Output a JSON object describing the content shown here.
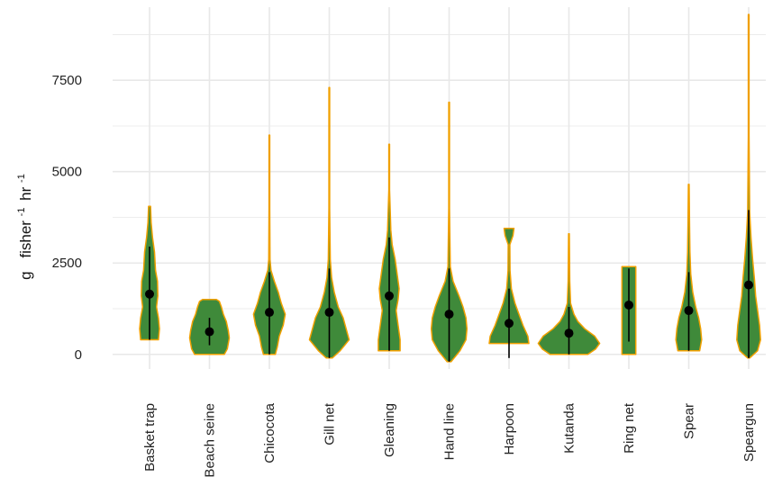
{
  "chart_data": {
    "type": "violin",
    "title": "",
    "xlabel": "",
    "ylabel": {
      "prefix": "g",
      "unit1": "fisher",
      "exp1": "-1",
      "unit2": "hr",
      "exp2": "-1"
    },
    "ylim": [
      -400,
      9500
    ],
    "yticks": [
      0,
      2500,
      5000,
      7500
    ],
    "yticks_labels": [
      "0",
      "2500",
      "5000",
      "7500"
    ],
    "grid": true,
    "legend": "none",
    "colors": {
      "fill": "#3f8a3a",
      "outline": "#f0a000",
      "marker": "#000000",
      "grid": "#e8e8e8"
    },
    "categories": [
      "Basket trap",
      "Beach seine",
      "Chicocota",
      "Gill net",
      "Gleaning",
      "Hand line",
      "Harpoon",
      "Kutanda",
      "Ring net",
      "Spear",
      "Speargun"
    ],
    "series": [
      {
        "category": "Basket trap",
        "mean": 1650,
        "sd_low": 400,
        "sd_high": 2950,
        "min": 400,
        "max": 4050,
        "density": [
          [
            400,
            0.45
          ],
          [
            700,
            0.5
          ],
          [
            1000,
            0.45
          ],
          [
            1300,
            0.35
          ],
          [
            1600,
            0.42
          ],
          [
            2000,
            0.4
          ],
          [
            2300,
            0.3
          ],
          [
            2800,
            0.25
          ],
          [
            3200,
            0.15
          ],
          [
            3600,
            0.08
          ],
          [
            4050,
            0.05
          ]
        ]
      },
      {
        "category": "Beach seine",
        "mean": 620,
        "sd_low": 250,
        "sd_high": 1000,
        "min": 0,
        "max": 1500,
        "density": [
          [
            0,
            0.75
          ],
          [
            150,
            0.9
          ],
          [
            300,
            0.95
          ],
          [
            450,
            1.0
          ],
          [
            650,
            0.95
          ],
          [
            900,
            0.85
          ],
          [
            1100,
            0.7
          ],
          [
            1300,
            0.6
          ],
          [
            1450,
            0.5
          ],
          [
            1500,
            0.35
          ]
        ]
      },
      {
        "category": "Chicocota",
        "mean": 1150,
        "sd_low": 0,
        "sd_high": 2250,
        "min": 0,
        "max": 6000,
        "density": [
          [
            0,
            0.3
          ],
          [
            200,
            0.4
          ],
          [
            500,
            0.5
          ],
          [
            800,
            0.7
          ],
          [
            1100,
            0.8
          ],
          [
            1400,
            0.6
          ],
          [
            1700,
            0.45
          ],
          [
            2000,
            0.25
          ],
          [
            2300,
            0.08
          ],
          [
            2600,
            0.03
          ],
          [
            4000,
            0.02
          ],
          [
            6000,
            0.02
          ]
        ]
      },
      {
        "category": "Gill net",
        "mean": 1150,
        "sd_low": -100,
        "sd_high": 2350,
        "min": -100,
        "max": 7300,
        "density": [
          [
            -100,
            0.15
          ],
          [
            100,
            0.55
          ],
          [
            400,
            1.0
          ],
          [
            700,
            0.85
          ],
          [
            1000,
            0.7
          ],
          [
            1300,
            0.45
          ],
          [
            1700,
            0.25
          ],
          [
            2100,
            0.12
          ],
          [
            2600,
            0.05
          ],
          [
            4000,
            0.02
          ],
          [
            7300,
            0.02
          ]
        ]
      },
      {
        "category": "Gleaning",
        "mean": 1600,
        "sd_low": 100,
        "sd_high": 3200,
        "min": 100,
        "max": 5750,
        "density": [
          [
            100,
            0.55
          ],
          [
            400,
            0.55
          ],
          [
            800,
            0.45
          ],
          [
            1200,
            0.35
          ],
          [
            1500,
            0.45
          ],
          [
            1800,
            0.5
          ],
          [
            2200,
            0.4
          ],
          [
            2600,
            0.3
          ],
          [
            3000,
            0.15
          ],
          [
            3400,
            0.08
          ],
          [
            4500,
            0.02
          ],
          [
            5750,
            0.02
          ]
        ]
      },
      {
        "category": "Hand line",
        "mean": 1100,
        "sd_low": -200,
        "sd_high": 2350,
        "min": -200,
        "max": 6900,
        "density": [
          [
            -200,
            0.1
          ],
          [
            100,
            0.55
          ],
          [
            400,
            0.85
          ],
          [
            700,
            0.9
          ],
          [
            1000,
            0.85
          ],
          [
            1300,
            0.7
          ],
          [
            1600,
            0.5
          ],
          [
            2000,
            0.2
          ],
          [
            2400,
            0.06
          ],
          [
            4000,
            0.02
          ],
          [
            6900,
            0.02
          ]
        ]
      },
      {
        "category": "Harpoon",
        "mean": 850,
        "sd_low": -100,
        "sd_high": 1800,
        "min": -100,
        "max": 3450,
        "density": [
          [
            300,
            1.0
          ],
          [
            500,
            0.95
          ],
          [
            800,
            0.7
          ],
          [
            1100,
            0.5
          ],
          [
            1400,
            0.3
          ],
          [
            1800,
            0.12
          ],
          [
            2300,
            0.05
          ],
          [
            3000,
            0.04
          ],
          [
            3250,
            0.2
          ],
          [
            3450,
            0.25
          ]
        ]
      },
      {
        "category": "Kutanda",
        "mean": 580,
        "sd_low": 0,
        "sd_high": 1300,
        "min": 0,
        "max": 3300,
        "density": [
          [
            0,
            0.95
          ],
          [
            150,
            1.35
          ],
          [
            300,
            1.55
          ],
          [
            500,
            1.3
          ],
          [
            700,
            0.8
          ],
          [
            900,
            0.45
          ],
          [
            1100,
            0.25
          ],
          [
            1400,
            0.08
          ],
          [
            2000,
            0.04
          ],
          [
            3300,
            0.02
          ]
        ]
      },
      {
        "category": "Ring net",
        "mean": 1350,
        "sd_low": 350,
        "sd_high": 2350,
        "min": 0,
        "max": 2400,
        "density": [
          [
            0,
            0.35
          ],
          [
            400,
            0.35
          ],
          [
            800,
            0.35
          ],
          [
            1200,
            0.35
          ],
          [
            1600,
            0.35
          ],
          [
            2000,
            0.35
          ],
          [
            2400,
            0.35
          ]
        ]
      },
      {
        "category": "Spear",
        "mean": 1200,
        "sd_low": 100,
        "sd_high": 2250,
        "min": 100,
        "max": 4650,
        "density": [
          [
            100,
            0.55
          ],
          [
            400,
            0.65
          ],
          [
            700,
            0.6
          ],
          [
            1000,
            0.5
          ],
          [
            1300,
            0.35
          ],
          [
            1700,
            0.2
          ],
          [
            2200,
            0.1
          ],
          [
            2800,
            0.06
          ],
          [
            3500,
            0.04
          ],
          [
            4650,
            0.02
          ]
        ]
      },
      {
        "category": "Speargun",
        "mean": 1900,
        "sd_low": -100,
        "sd_high": 3950,
        "min": -100,
        "max": 9300,
        "density": [
          [
            -100,
            0.05
          ],
          [
            100,
            0.45
          ],
          [
            400,
            0.6
          ],
          [
            800,
            0.55
          ],
          [
            1200,
            0.45
          ],
          [
            1600,
            0.35
          ],
          [
            2000,
            0.3
          ],
          [
            2600,
            0.2
          ],
          [
            3200,
            0.12
          ],
          [
            3900,
            0.05
          ],
          [
            6000,
            0.02
          ],
          [
            9300,
            0.02
          ]
        ]
      }
    ]
  }
}
